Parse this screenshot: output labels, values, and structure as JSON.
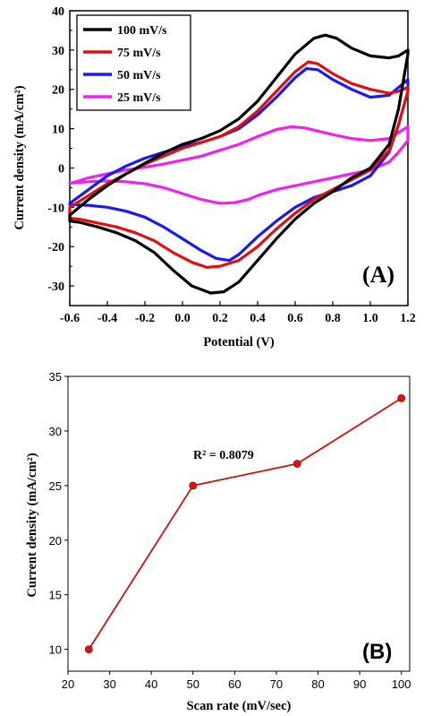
{
  "chart_data": [
    {
      "type": "line",
      "panel_label": "(A)",
      "xlabel": "Potential (V)",
      "ylabel": "Current density (mA/cm²)",
      "xlim": [
        -0.6,
        1.2
      ],
      "ylim": [
        -35,
        40
      ],
      "x_ticks": [
        "-0.6",
        "-0.4",
        "-0.2",
        "0.0",
        "0.2",
        "0.4",
        "0.6",
        "0.8",
        "1.0",
        "1.2"
      ],
      "y_ticks": [
        "-30",
        "-20",
        "-10",
        "0",
        "10",
        "20",
        "30",
        "40"
      ],
      "legend_position": "top-left",
      "series": [
        {
          "name": "100 mV/s",
          "color": "#000000",
          "points": [
            [
              -0.6,
              -12
            ],
            [
              -0.5,
              -8
            ],
            [
              -0.4,
              -4.5
            ],
            [
              -0.3,
              -1.5
            ],
            [
              -0.2,
              1.2
            ],
            [
              -0.1,
              3.8
            ],
            [
              0.0,
              6
            ],
            [
              0.1,
              7.5
            ],
            [
              0.2,
              9.5
            ],
            [
              0.3,
              12.5
            ],
            [
              0.4,
              17
            ],
            [
              0.5,
              23
            ],
            [
              0.6,
              29
            ],
            [
              0.7,
              33
            ],
            [
              0.76,
              33.8
            ],
            [
              0.82,
              33
            ],
            [
              0.9,
              30.5
            ],
            [
              1.0,
              28.5
            ],
            [
              1.1,
              28
            ],
            [
              1.15,
              28.5
            ],
            [
              1.2,
              30
            ],
            [
              1.2,
              29
            ],
            [
              1.15,
              15
            ],
            [
              1.1,
              6
            ],
            [
              1.0,
              0
            ],
            [
              0.9,
              -2.5
            ],
            [
              0.8,
              -6
            ],
            [
              0.7,
              -9
            ],
            [
              0.6,
              -13
            ],
            [
              0.5,
              -18
            ],
            [
              0.4,
              -23.5
            ],
            [
              0.3,
              -29
            ],
            [
              0.22,
              -31.5
            ],
            [
              0.15,
              -31.8
            ],
            [
              0.05,
              -30
            ],
            [
              -0.05,
              -26
            ],
            [
              -0.15,
              -21.5
            ],
            [
              -0.25,
              -18.5
            ],
            [
              -0.35,
              -16.5
            ],
            [
              -0.45,
              -15
            ],
            [
              -0.55,
              -13.8
            ],
            [
              -0.6,
              -13.5
            ]
          ]
        },
        {
          "name": "75 mV/s",
          "color": "#e01010",
          "points": [
            [
              -0.6,
              -10
            ],
            [
              -0.5,
              -7
            ],
            [
              -0.4,
              -4
            ],
            [
              -0.3,
              -1.5
            ],
            [
              -0.2,
              1
            ],
            [
              -0.1,
              3
            ],
            [
              0.0,
              5
            ],
            [
              0.1,
              6.5
            ],
            [
              0.2,
              8
            ],
            [
              0.3,
              10.5
            ],
            [
              0.4,
              14.5
            ],
            [
              0.5,
              19.5
            ],
            [
              0.6,
              24.5
            ],
            [
              0.67,
              27
            ],
            [
              0.72,
              26.5
            ],
            [
              0.8,
              24
            ],
            [
              0.9,
              21.5
            ],
            [
              1.0,
              20
            ],
            [
              1.1,
              19
            ],
            [
              1.15,
              19.5
            ],
            [
              1.2,
              20.5
            ],
            [
              1.2,
              19.5
            ],
            [
              1.15,
              11
            ],
            [
              1.1,
              4.5
            ],
            [
              1.0,
              -0.5
            ],
            [
              0.9,
              -3
            ],
            [
              0.8,
              -5.5
            ],
            [
              0.7,
              -8
            ],
            [
              0.6,
              -11.5
            ],
            [
              0.5,
              -15.5
            ],
            [
              0.4,
              -20
            ],
            [
              0.3,
              -23.5
            ],
            [
              0.2,
              -25
            ],
            [
              0.13,
              -25.3
            ],
            [
              0.05,
              -24
            ],
            [
              -0.05,
              -21.5
            ],
            [
              -0.15,
              -18.5
            ],
            [
              -0.25,
              -16.5
            ],
            [
              -0.35,
              -15
            ],
            [
              -0.45,
              -14
            ],
            [
              -0.55,
              -13
            ],
            [
              -0.6,
              -12.8
            ]
          ]
        },
        {
          "name": "50 mV/s",
          "color": "#1a1aee",
          "points": [
            [
              -0.6,
              -9
            ],
            [
              -0.5,
              -5.5
            ],
            [
              -0.4,
              -2
            ],
            [
              -0.3,
              0.5
            ],
            [
              -0.2,
              2.5
            ],
            [
              -0.1,
              4
            ],
            [
              0.0,
              5.5
            ],
            [
              0.1,
              6.5
            ],
            [
              0.2,
              8
            ],
            [
              0.3,
              10
            ],
            [
              0.4,
              13.5
            ],
            [
              0.5,
              18
            ],
            [
              0.6,
              23
            ],
            [
              0.66,
              25.3
            ],
            [
              0.72,
              25
            ],
            [
              0.8,
              22.5
            ],
            [
              0.9,
              20
            ],
            [
              1.0,
              18
            ],
            [
              1.1,
              18.5
            ],
            [
              1.2,
              22.5
            ],
            [
              1.2,
              19.5
            ],
            [
              1.15,
              11
            ],
            [
              1.1,
              4
            ],
            [
              1.0,
              -2
            ],
            [
              0.9,
              -4.5
            ],
            [
              0.8,
              -6
            ],
            [
              0.7,
              -7.5
            ],
            [
              0.6,
              -10
            ],
            [
              0.5,
              -13.5
            ],
            [
              0.4,
              -17.5
            ],
            [
              0.3,
              -22
            ],
            [
              0.25,
              -23.5
            ],
            [
              0.18,
              -23
            ],
            [
              0.1,
              -21
            ],
            [
              0.0,
              -18
            ],
            [
              -0.1,
              -15
            ],
            [
              -0.2,
              -12.5
            ],
            [
              -0.3,
              -11
            ],
            [
              -0.4,
              -10
            ],
            [
              -0.5,
              -9.5
            ],
            [
              -0.6,
              -9.3
            ]
          ]
        },
        {
          "name": "25 mV/s",
          "color": "#ee22ee",
          "points": [
            [
              -0.6,
              -4
            ],
            [
              -0.5,
              -2.5
            ],
            [
              -0.4,
              -1.5
            ],
            [
              -0.3,
              -0.5
            ],
            [
              -0.2,
              0.2
            ],
            [
              -0.1,
              1
            ],
            [
              0.0,
              2
            ],
            [
              0.1,
              3
            ],
            [
              0.2,
              4.5
            ],
            [
              0.3,
              6
            ],
            [
              0.4,
              8
            ],
            [
              0.5,
              9.8
            ],
            [
              0.58,
              10.5
            ],
            [
              0.65,
              10.2
            ],
            [
              0.8,
              8.5
            ],
            [
              0.9,
              7.5
            ],
            [
              1.0,
              7
            ],
            [
              1.1,
              7.5
            ],
            [
              1.2,
              10.5
            ],
            [
              1.2,
              7
            ],
            [
              1.15,
              4
            ],
            [
              1.1,
              1.5
            ],
            [
              1.0,
              -0.5
            ],
            [
              0.9,
              -1.5
            ],
            [
              0.8,
              -2.5
            ],
            [
              0.7,
              -3.5
            ],
            [
              0.6,
              -4.5
            ],
            [
              0.5,
              -5.5
            ],
            [
              0.4,
              -7
            ],
            [
              0.35,
              -8
            ],
            [
              0.28,
              -8.8
            ],
            [
              0.2,
              -9
            ],
            [
              0.1,
              -8
            ],
            [
              0.0,
              -6.5
            ],
            [
              -0.1,
              -5
            ],
            [
              -0.2,
              -4
            ],
            [
              -0.3,
              -3.5
            ],
            [
              -0.4,
              -3.3
            ],
            [
              -0.5,
              -3.5
            ],
            [
              -0.6,
              -3.8
            ]
          ]
        }
      ]
    },
    {
      "type": "line",
      "panel_label": "(B)",
      "xlabel": "Scan rate (mV/sec)",
      "ylabel": "Current density (mA/cm²)",
      "xlim": [
        20,
        102
      ],
      "ylim": [
        8,
        35
      ],
      "x_ticks": [
        "20",
        "30",
        "40",
        "50",
        "60",
        "70",
        "80",
        "90",
        "100"
      ],
      "y_ticks": [
        "10",
        "15",
        "20",
        "25",
        "30",
        "35"
      ],
      "annotation": "R² = 0.8079",
      "series": [
        {
          "color": "#cc1111",
          "x": [
            25,
            50,
            75,
            100
          ],
          "y": [
            10,
            25,
            27,
            33
          ]
        }
      ]
    }
  ]
}
